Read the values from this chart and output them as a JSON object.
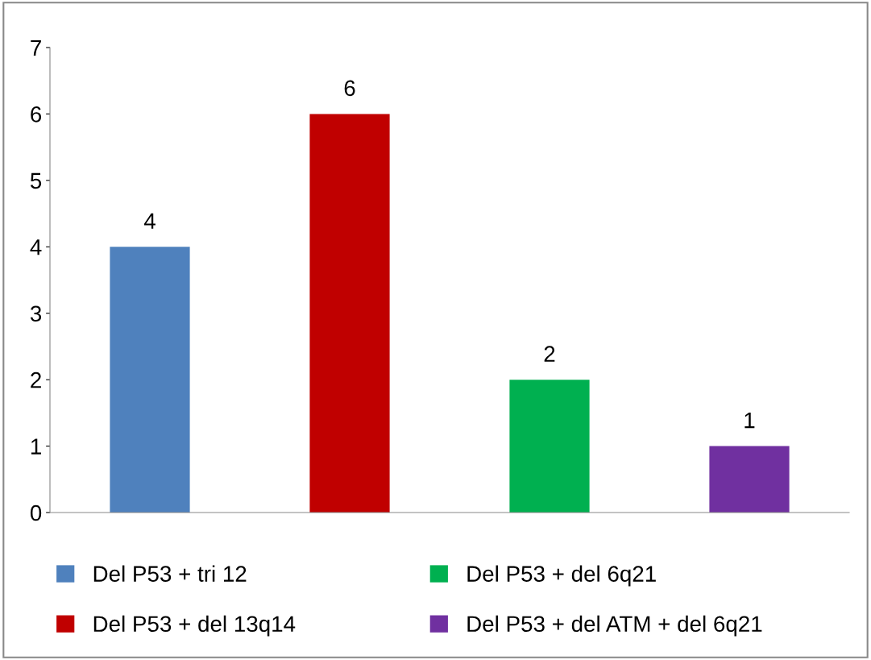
{
  "chart_data": {
    "type": "bar",
    "categories": [
      null
    ],
    "series": [
      {
        "name": "Del P53 + tri 12",
        "color": "#4f81bd",
        "values": [
          4
        ]
      },
      {
        "name": "Del P53 + del 13q14",
        "color": "#c00000",
        "values": [
          6
        ]
      },
      {
        "name": "Del P53 + del 6q21",
        "color": "#00b050",
        "values": [
          2
        ]
      },
      {
        "name": "Del P53 + del ATM + del 6q21",
        "color": "#7030a0",
        "values": [
          1
        ]
      }
    ],
    "ylim": [
      0,
      7
    ],
    "yticks": [
      0,
      1,
      2,
      3,
      4,
      5,
      6,
      7
    ],
    "grid": false,
    "data_labels": true,
    "legend": "bottom"
  }
}
